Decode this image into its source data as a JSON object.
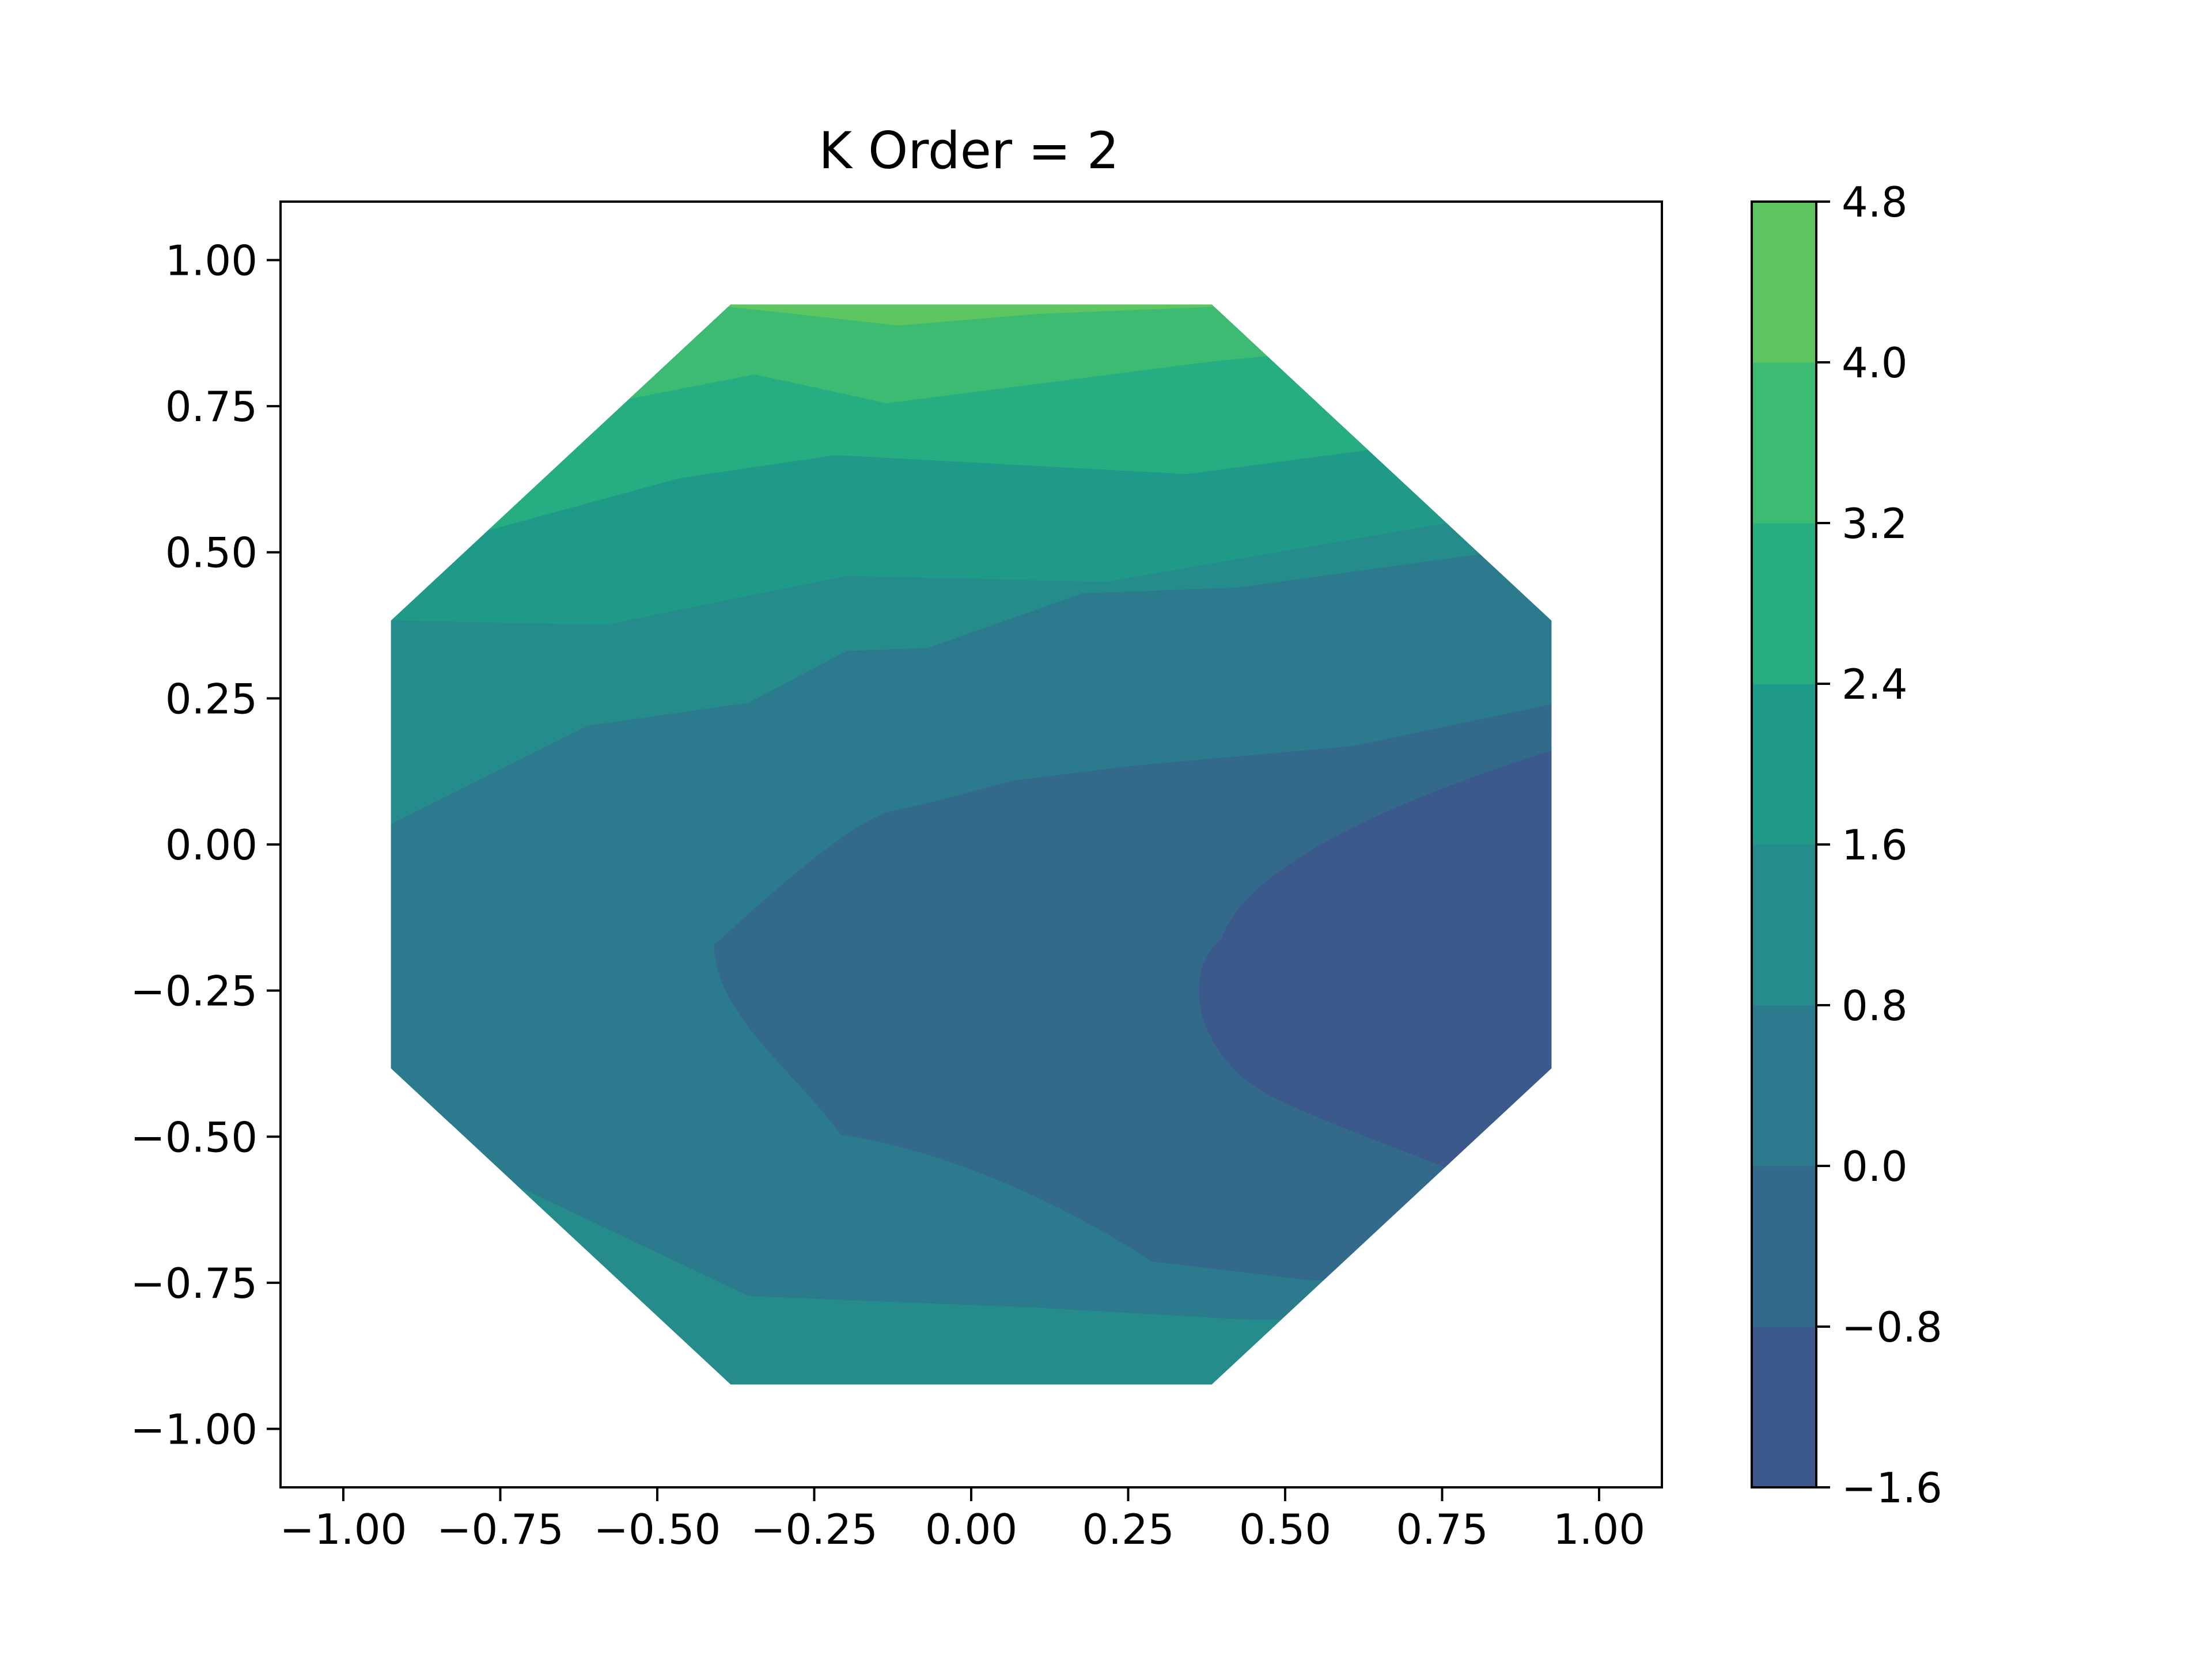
{
  "chart_data": {
    "type": "contourf",
    "title": "K Order = 2",
    "xlabel": "",
    "ylabel": "",
    "xlim": [
      -1.1,
      1.1
    ],
    "ylim": [
      -1.1,
      1.1
    ],
    "x_ticks": [
      -1.0,
      -0.75,
      -0.5,
      -0.25,
      0.0,
      0.25,
      0.5,
      0.75,
      1.0
    ],
    "y_ticks": [
      -1.0,
      -0.75,
      -0.5,
      -0.25,
      0.0,
      0.25,
      0.5,
      0.75,
      1.0
    ],
    "x_tick_labels": [
      "−1.00",
      "−0.75",
      "−0.50",
      "−0.25",
      "0.00",
      "0.25",
      "0.50",
      "0.75",
      "1.00"
    ],
    "y_tick_labels": [
      "−1.00",
      "−0.75",
      "−0.50",
      "−0.25",
      "0.00",
      "0.25",
      "0.50",
      "0.75",
      "1.00"
    ],
    "grid": false,
    "colorbar": {
      "position": "right",
      "levels": [
        -1.6,
        -0.8,
        0.0,
        0.8,
        1.6,
        2.4,
        3.2,
        4.0,
        4.8
      ],
      "tick_labels": [
        "−1.6",
        "−0.8",
        "0.0",
        "0.8",
        "1.6",
        "2.4",
        "3.2",
        "4.0",
        "4.8"
      ],
      "colors": [
        "#3b5a8b",
        "#336a8c",
        "#2b7a8d",
        "#258b8b",
        "#1f9a89",
        "#26ad81",
        "#3dbb72",
        "#5ec560"
      ]
    },
    "domain_polygon": [
      [
        -0.383,
        0.924
      ],
      [
        0.383,
        0.924
      ],
      [
        0.924,
        0.383
      ],
      [
        0.924,
        -0.383
      ],
      [
        0.383,
        -0.924
      ],
      [
        -0.383,
        -0.924
      ],
      [
        -0.924,
        -0.383
      ],
      [
        -0.924,
        0.383
      ]
    ],
    "contour_lines": [
      {
        "level": 4.0,
        "points": [
          [
            -0.383,
            0.924
          ],
          [
            -0.12,
            0.89
          ],
          [
            0.05,
            0.905
          ],
          [
            0.383,
            0.924
          ]
        ]
      },
      {
        "level": 3.2,
        "points": [
          [
            -0.6,
            0.705
          ],
          [
            -0.33,
            0.805
          ],
          [
            -0.1,
            0.78
          ],
          [
            0.14,
            0.79
          ],
          [
            0.3,
            0.78
          ],
          [
            0.65,
            0.658
          ]
        ]
      },
      {
        "level": 2.4,
        "points": [
          [
            -0.75,
            0.55
          ],
          [
            -0.3,
            0.47
          ],
          [
            -0.05,
            0.45
          ],
          [
            0.22,
            0.46
          ],
          [
            0.45,
            0.4
          ],
          [
            0.84,
            0.53
          ]
        ]
      },
      {
        "level": 1.6,
        "points": [
          [
            -0.924,
            0.39
          ],
          [
            -0.52,
            0.38
          ],
          [
            -0.22,
            0.34
          ],
          [
            0.1,
            0.27
          ],
          [
            0.3,
            0.22
          ],
          [
            0.55,
            0.14
          ],
          [
            0.86,
            0.36
          ]
        ]
      },
      {
        "level": 0.8,
        "points": [
          [
            -0.924,
            0.04
          ],
          [
            -0.56,
            0.24
          ],
          [
            -0.3,
            0.28
          ],
          [
            -0.15,
            0.37
          ],
          [
            -0.05,
            0.38
          ],
          [
            0.2,
            0.45
          ],
          [
            0.5,
            0.46
          ],
          [
            0.65,
            0.38
          ],
          [
            0.924,
            0.21
          ]
        ]
      },
      {
        "level": 0.0,
        "points": [
          [
            -0.4,
            -0.18
          ],
          [
            -0.3,
            -0.07
          ],
          [
            -0.15,
            0.06
          ],
          [
            -0.05,
            0.1
          ],
          [
            0.05,
            0.1
          ],
          [
            0.15,
            0.12
          ],
          [
            0.3,
            0.18
          ],
          [
            0.924,
            0.19
          ]
        ]
      },
      {
        "level": 0.0,
        "points": [
          [
            -0.4,
            -0.18
          ],
          [
            -0.3,
            -0.4
          ],
          [
            -0.2,
            -0.5
          ],
          [
            0.15,
            -0.55
          ],
          [
            0.33,
            -0.7
          ],
          [
            0.5,
            -0.73
          ],
          [
            0.9,
            -0.75
          ]
        ]
      },
      {
        "level": -0.8,
        "points": [
          [
            0.924,
            0.19
          ],
          [
            0.6,
            0.04
          ],
          [
            0.42,
            -0.08
          ],
          [
            0.4,
            -0.26
          ],
          [
            0.6,
            -0.43
          ],
          [
            0.75,
            -0.56
          ]
        ]
      },
      {
        "level": 0.8,
        "points": [
          [
            -0.72,
            -0.58
          ],
          [
            -0.6,
            -0.63
          ],
          [
            -0.33,
            -0.76
          ],
          [
            -0.05,
            -0.77
          ],
          [
            0.33,
            -0.85
          ],
          [
            0.6,
            -0.72
          ]
        ]
      }
    ]
  }
}
